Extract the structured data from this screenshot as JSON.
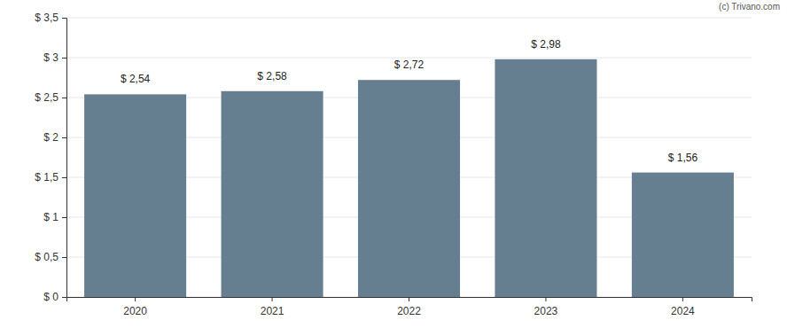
{
  "chart_data": {
    "type": "bar",
    "categories": [
      "2020",
      "2021",
      "2022",
      "2023",
      "2024"
    ],
    "values": [
      2.54,
      2.58,
      2.72,
      2.98,
      1.56
    ],
    "value_labels": [
      "$ 2,54",
      "$ 2,58",
      "$ 2,72",
      "$ 2,98",
      "$ 1,56"
    ],
    "data_labels": true,
    "color": "#657f91",
    "ylim": [
      0,
      3.5
    ],
    "yticks": [
      {
        "value": 0,
        "label": "$ 0"
      },
      {
        "value": 0.5,
        "label": "$ 0,5"
      },
      {
        "value": 1,
        "label": "$ 1"
      },
      {
        "value": 1.5,
        "label": "$ 1,5"
      },
      {
        "value": 2,
        "label": "$ 2"
      },
      {
        "value": 2.5,
        "label": "$ 2,5"
      },
      {
        "value": 3,
        "label": "$ 3"
      },
      {
        "value": 3.5,
        "label": "$ 3,5"
      }
    ],
    "grid": true,
    "annotations": [
      "(c) Trivano.com"
    ]
  }
}
